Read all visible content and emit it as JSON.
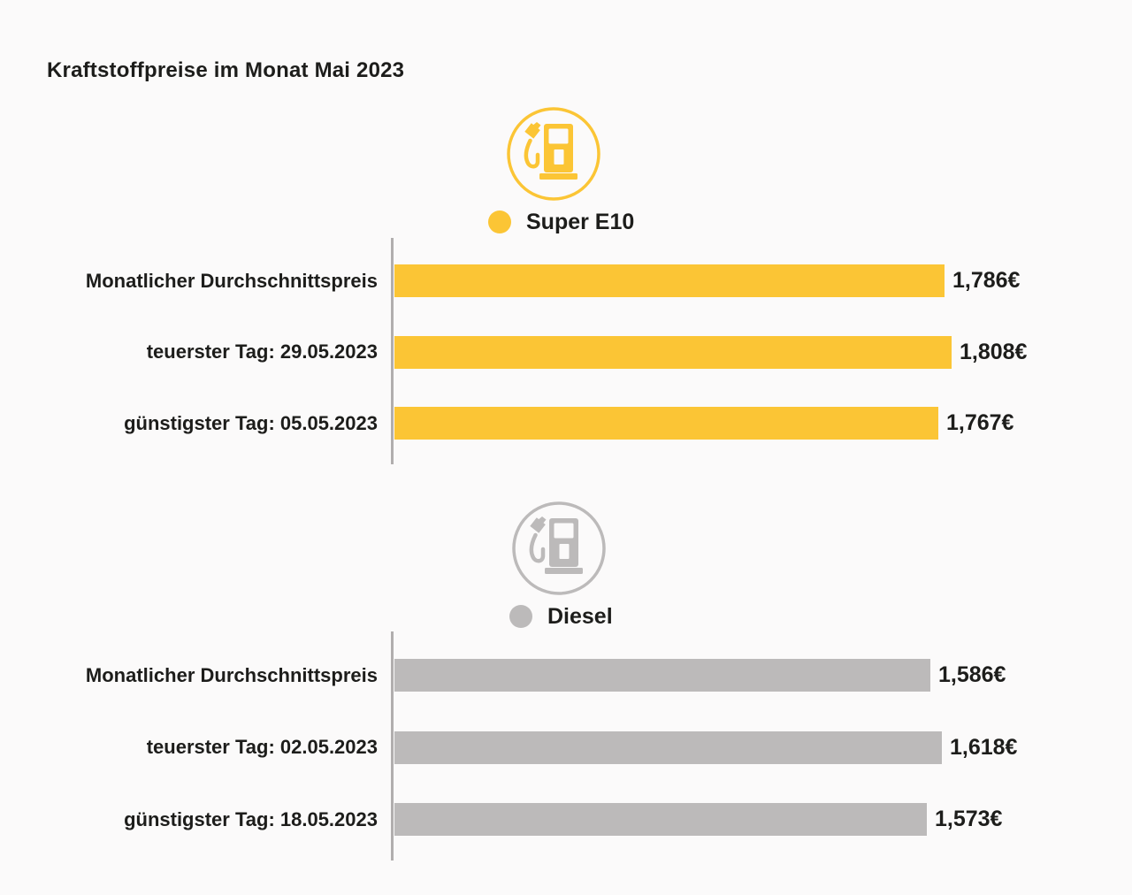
{
  "page": {
    "title": "Kraftstoffpreise im Monat Mai 2023",
    "background_color": "#FBFAFA",
    "text_color": "#1D1D1B",
    "axis_color": "#B1AEAE"
  },
  "chart_data": [
    {
      "type": "bar",
      "orientation": "horizontal",
      "name": "Super E10",
      "color": "#FBC535",
      "icon": "fuel-pump-icon",
      "currency": "€",
      "categories": [
        "Monatlicher Durchschnittspreis",
        "teuerster Tag: 29.05.2023",
        "günstigster Tag: 05.05.2023"
      ],
      "values": [
        1.786,
        1.808,
        1.767
      ],
      "value_labels": [
        "1,786€",
        "1,808€",
        "1,767€"
      ],
      "legend": {
        "label": "Super E10",
        "position": "top-center"
      },
      "grid": false
    },
    {
      "type": "bar",
      "orientation": "horizontal",
      "name": "Diesel",
      "color": "#BCBABA",
      "icon": "fuel-pump-icon",
      "currency": "€",
      "categories": [
        "Monatlicher Durchschnittspreis",
        "teuerster Tag: 02.05.2023",
        "günstigster Tag: 18.05.2023"
      ],
      "values": [
        1.586,
        1.618,
        1.573
      ],
      "value_labels": [
        "1,586€",
        "1,618€",
        "1,573€"
      ],
      "legend": {
        "label": "Diesel",
        "position": "top-center"
      },
      "grid": false
    }
  ]
}
